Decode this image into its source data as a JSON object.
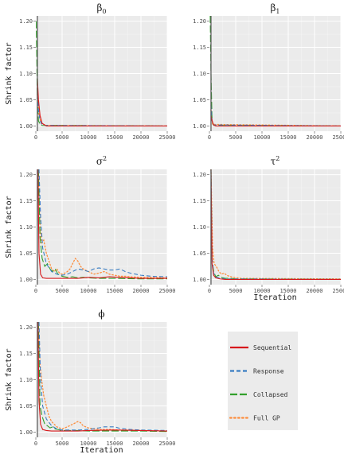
{
  "figure": {
    "ylabel": "Shrink factor",
    "xlabel": "Iteration"
  },
  "legend": [
    {
      "name": "Sequential",
      "color": "#d7191c",
      "dash": "solid"
    },
    {
      "name": "Response",
      "color": "#3a7dc2",
      "dash": "dashed"
    },
    {
      "name": "Collapsed",
      "color": "#33a02c",
      "dash": "longdash"
    },
    {
      "name": "Full GP",
      "color": "#fd8d3c",
      "dash": "dotted"
    }
  ],
  "chart_data": [
    {
      "type": "line",
      "title": "β",
      "title_sub": "0",
      "title_sub_kind": "sub",
      "xlim": [
        0,
        25000
      ],
      "ylim": [
        0.99,
        1.21
      ],
      "xticks": [
        0,
        5000,
        10000,
        15000,
        20000,
        25000
      ],
      "yticks": [
        1.0,
        1.05,
        1.1,
        1.15,
        1.2
      ],
      "show_xlabel": false,
      "show_ylabel": true,
      "series": [
        {
          "name": "Sequential",
          "x": [
            300,
            500,
            800,
            1200,
            2000,
            3000,
            25000
          ],
          "y": [
            1.09,
            1.05,
            1.02,
            1.005,
            1.0,
            1.0,
            1.0
          ]
        },
        {
          "name": "Response",
          "x": [
            300,
            500,
            800,
            1200,
            2000,
            25000
          ],
          "y": [
            1.07,
            1.03,
            1.01,
            1.002,
            1.001,
            1.0
          ]
        },
        {
          "name": "Collapsed",
          "x": [
            50,
            150,
            300,
            500,
            800,
            1200,
            25000
          ],
          "y": [
            1.2,
            1.15,
            1.05,
            1.01,
            1.003,
            1.001,
            1.0
          ]
        },
        {
          "name": "Full GP",
          "x": [
            300,
            600,
            1000,
            2000,
            25000
          ],
          "y": [
            1.06,
            1.02,
            1.005,
            1.001,
            1.0
          ]
        }
      ]
    },
    {
      "type": "line",
      "title": "β",
      "title_sub": "1",
      "title_sub_kind": "sub",
      "xlim": [
        0,
        25000
      ],
      "ylim": [
        0.99,
        1.21
      ],
      "xticks": [
        0,
        5000,
        10000,
        15000,
        20000,
        25000
      ],
      "yticks": [
        1.0,
        1.05,
        1.1,
        1.15,
        1.2
      ],
      "show_xlabel": false,
      "show_ylabel": false,
      "series": [
        {
          "name": "Sequential",
          "x": [
            300,
            500,
            800,
            1200,
            25000
          ],
          "y": [
            1.02,
            1.01,
            1.002,
            1.0,
            1.0
          ]
        },
        {
          "name": "Response",
          "x": [
            300,
            500,
            800,
            25000
          ],
          "y": [
            1.04,
            1.01,
            1.002,
            1.0
          ]
        },
        {
          "name": "Collapsed",
          "x": [
            150,
            300,
            500,
            800,
            25000
          ],
          "y": [
            1.21,
            1.1,
            1.01,
            1.001,
            1.0
          ]
        },
        {
          "name": "Full GP",
          "x": [
            300,
            600,
            25000
          ],
          "y": [
            1.03,
            1.003,
            1.0
          ]
        }
      ]
    },
    {
      "type": "line",
      "title": "σ",
      "title_sub": "2",
      "title_sub_kind": "sup",
      "xlim": [
        0,
        25000
      ],
      "ylim": [
        0.99,
        1.21
      ],
      "xticks": [
        0,
        5000,
        10000,
        15000,
        20000,
        25000
      ],
      "yticks": [
        1.0,
        1.05,
        1.1,
        1.15,
        1.2
      ],
      "show_xlabel": false,
      "show_ylabel": true,
      "series": [
        {
          "name": "Sequential",
          "x": [
            400,
            600,
            900,
            1300,
            2000,
            3000,
            5000,
            8000,
            10000,
            12000,
            14000,
            16000,
            18000,
            20000,
            25000
          ],
          "y": [
            1.21,
            1.05,
            1.01,
            1.003,
            1.002,
            1.002,
            1.002,
            1.002,
            1.004,
            1.003,
            1.005,
            1.004,
            1.003,
            1.002,
            1.002
          ]
        },
        {
          "name": "Response",
          "x": [
            600,
            900,
            1300,
            2000,
            3000,
            4000,
            5000,
            6000,
            7000,
            8000,
            9000,
            10000,
            11000,
            12000,
            13000,
            14000,
            15000,
            16000,
            17000,
            18000,
            19000,
            20000,
            22000,
            25000
          ],
          "y": [
            1.21,
            1.12,
            1.06,
            1.03,
            1.015,
            1.01,
            1.008,
            1.01,
            1.015,
            1.02,
            1.018,
            1.015,
            1.02,
            1.022,
            1.02,
            1.018,
            1.018,
            1.02,
            1.015,
            1.012,
            1.01,
            1.008,
            1.006,
            1.005
          ]
        },
        {
          "name": "Collapsed",
          "x": [
            500,
            800,
            1200,
            1700,
            2200,
            2700,
            3200,
            3700,
            4200,
            5000,
            6000,
            7000,
            8000,
            9000,
            10000,
            12000,
            15000,
            20000,
            25000
          ],
          "y": [
            1.21,
            1.08,
            1.04,
            1.025,
            1.03,
            1.02,
            1.015,
            1.02,
            1.01,
            1.006,
            1.004,
            1.005,
            1.003,
            1.004,
            1.003,
            1.002,
            1.002,
            1.001,
            1.001
          ]
        },
        {
          "name": "Full GP",
          "x": [
            500,
            800,
            1100,
            1500,
            2000,
            2500,
            3000,
            3500,
            4000,
            4500,
            5000,
            5500,
            6000,
            6500,
            7000,
            7500,
            8000,
            8500,
            9000,
            10000,
            11000,
            12000,
            13000,
            14000,
            15000,
            16000,
            17000,
            18000,
            20000,
            25000
          ],
          "y": [
            1.21,
            1.1,
            1.07,
            1.075,
            1.05,
            1.035,
            1.02,
            1.015,
            1.02,
            1.012,
            1.01,
            1.012,
            1.015,
            1.02,
            1.03,
            1.04,
            1.035,
            1.025,
            1.02,
            1.015,
            1.01,
            1.012,
            1.015,
            1.01,
            1.008,
            1.006,
            1.006,
            1.005,
            1.004,
            1.003
          ]
        }
      ]
    },
    {
      "type": "line",
      "title": "τ",
      "title_sub": "2",
      "title_sub_kind": "sup",
      "xlim": [
        0,
        25000
      ],
      "ylim": [
        0.99,
        1.21
      ],
      "xticks": [
        0,
        5000,
        10000,
        15000,
        20000,
        25000
      ],
      "yticks": [
        1.0,
        1.05,
        1.1,
        1.15,
        1.2
      ],
      "show_xlabel": true,
      "show_ylabel": false,
      "series": [
        {
          "name": "Sequential",
          "x": [
            300,
            500,
            800,
            1200,
            2000,
            3000,
            25000
          ],
          "y": [
            1.21,
            1.03,
            1.008,
            1.003,
            1.001,
            1.0,
            1.0
          ]
        },
        {
          "name": "Response",
          "x": [
            300,
            500,
            800,
            1200,
            2000,
            3000,
            25000
          ],
          "y": [
            1.21,
            1.04,
            1.012,
            1.005,
            1.002,
            1.001,
            1.0
          ]
        },
        {
          "name": "Collapsed",
          "x": [
            300,
            500,
            800,
            1200,
            1700,
            2200,
            3000,
            4000,
            5000,
            25000
          ],
          "y": [
            1.21,
            1.04,
            1.015,
            1.005,
            1.008,
            1.004,
            1.002,
            1.002,
            1.001,
            1.0
          ]
        },
        {
          "name": "Full GP",
          "x": [
            300,
            600,
            900,
            1300,
            1800,
            2300,
            2800,
            3300,
            3800,
            4500,
            6000,
            25000
          ],
          "y": [
            1.21,
            1.06,
            1.03,
            1.025,
            1.015,
            1.01,
            1.012,
            1.008,
            1.006,
            1.004,
            1.002,
            1.001
          ]
        }
      ]
    },
    {
      "type": "line",
      "title": "ϕ",
      "title_sub": "",
      "title_sub_kind": "",
      "xlim": [
        0,
        25000
      ],
      "ylim": [
        0.99,
        1.21
      ],
      "xticks": [
        0,
        5000,
        10000,
        15000,
        20000,
        25000
      ],
      "yticks": [
        1.0,
        1.05,
        1.1,
        1.15,
        1.2
      ],
      "show_xlabel": true,
      "show_ylabel": true,
      "series": [
        {
          "name": "Sequential",
          "x": [
            400,
            600,
            900,
            1300,
            2000,
            3000,
            5000,
            8000,
            10000,
            15000,
            20000,
            25000
          ],
          "y": [
            1.21,
            1.06,
            1.015,
            1.005,
            1.003,
            1.002,
            1.002,
            1.002,
            1.003,
            1.004,
            1.003,
            1.002
          ]
        },
        {
          "name": "Response",
          "x": [
            600,
            900,
            1300,
            2000,
            3000,
            4000,
            5000,
            6000,
            8000,
            10000,
            12000,
            13000,
            14000,
            15000,
            16000,
            18000,
            20000,
            25000
          ],
          "y": [
            1.21,
            1.1,
            1.05,
            1.025,
            1.012,
            1.006,
            1.004,
            1.004,
            1.004,
            1.005,
            1.008,
            1.01,
            1.01,
            1.01,
            1.007,
            1.005,
            1.004,
            1.003
          ]
        },
        {
          "name": "Collapsed",
          "x": [
            500,
            800,
            1200,
            1700,
            2200,
            2700,
            3200,
            3700,
            4200,
            5000,
            6000,
            8000,
            10000,
            15000,
            20000,
            25000
          ],
          "y": [
            1.21,
            1.05,
            1.03,
            1.015,
            1.012,
            1.008,
            1.01,
            1.006,
            1.005,
            1.003,
            1.003,
            1.003,
            1.002,
            1.002,
            1.002,
            1.001
          ]
        },
        {
          "name": "Full GP",
          "x": [
            500,
            800,
            1100,
            1500,
            2000,
            2500,
            3000,
            3500,
            4000,
            4500,
            5000,
            6000,
            7000,
            8000,
            8500,
            9000,
            10000,
            11000,
            12000,
            14000,
            16000,
            18000,
            20000,
            25000
          ],
          "y": [
            1.21,
            1.13,
            1.1,
            1.07,
            1.05,
            1.03,
            1.02,
            1.015,
            1.01,
            1.008,
            1.006,
            1.01,
            1.015,
            1.02,
            1.018,
            1.012,
            1.008,
            1.006,
            1.005,
            1.005,
            1.004,
            1.004,
            1.003,
            1.002
          ]
        }
      ]
    }
  ]
}
